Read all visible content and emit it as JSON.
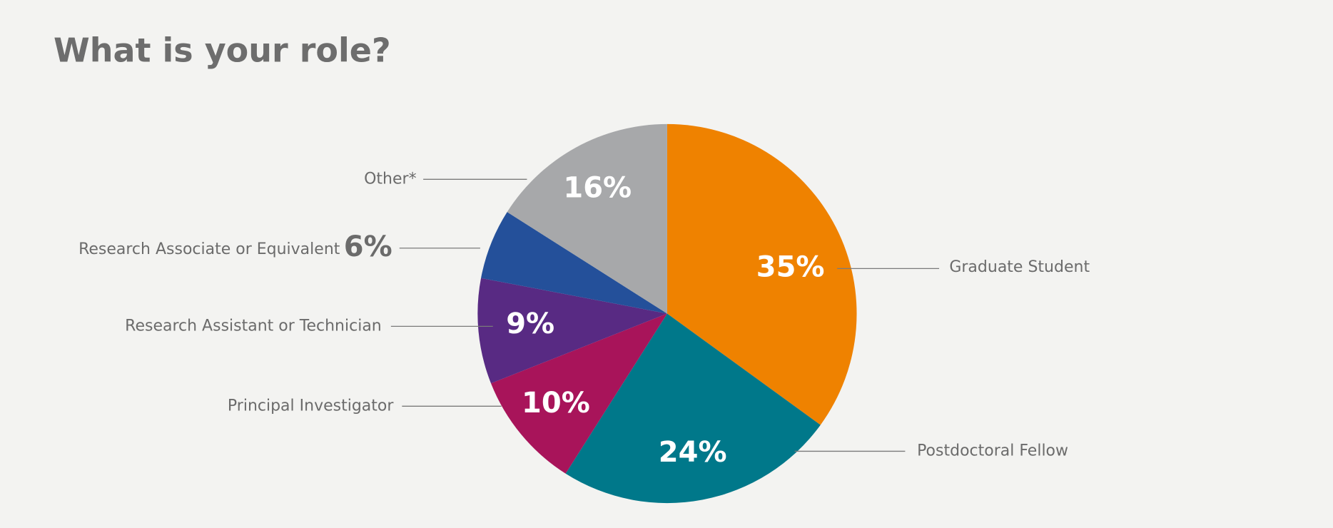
{
  "chart_data": {
    "type": "pie",
    "title": "What is your role?",
    "categories": [
      "Graduate Student",
      "Postdoctoral Fellow",
      "Principal Investigator",
      "Research Assistant or Technician",
      "Research Associate or Equivalent",
      "Other*"
    ],
    "values": [
      35,
      24,
      10,
      9,
      6,
      16
    ],
    "value_labels": [
      "35%",
      "24%",
      "10%",
      "9%",
      "6%",
      "16%"
    ],
    "colors": [
      "#ef8200",
      "#00788a",
      "#a8145a",
      "#582a83",
      "#24509a",
      "#a7a8aa"
    ]
  }
}
